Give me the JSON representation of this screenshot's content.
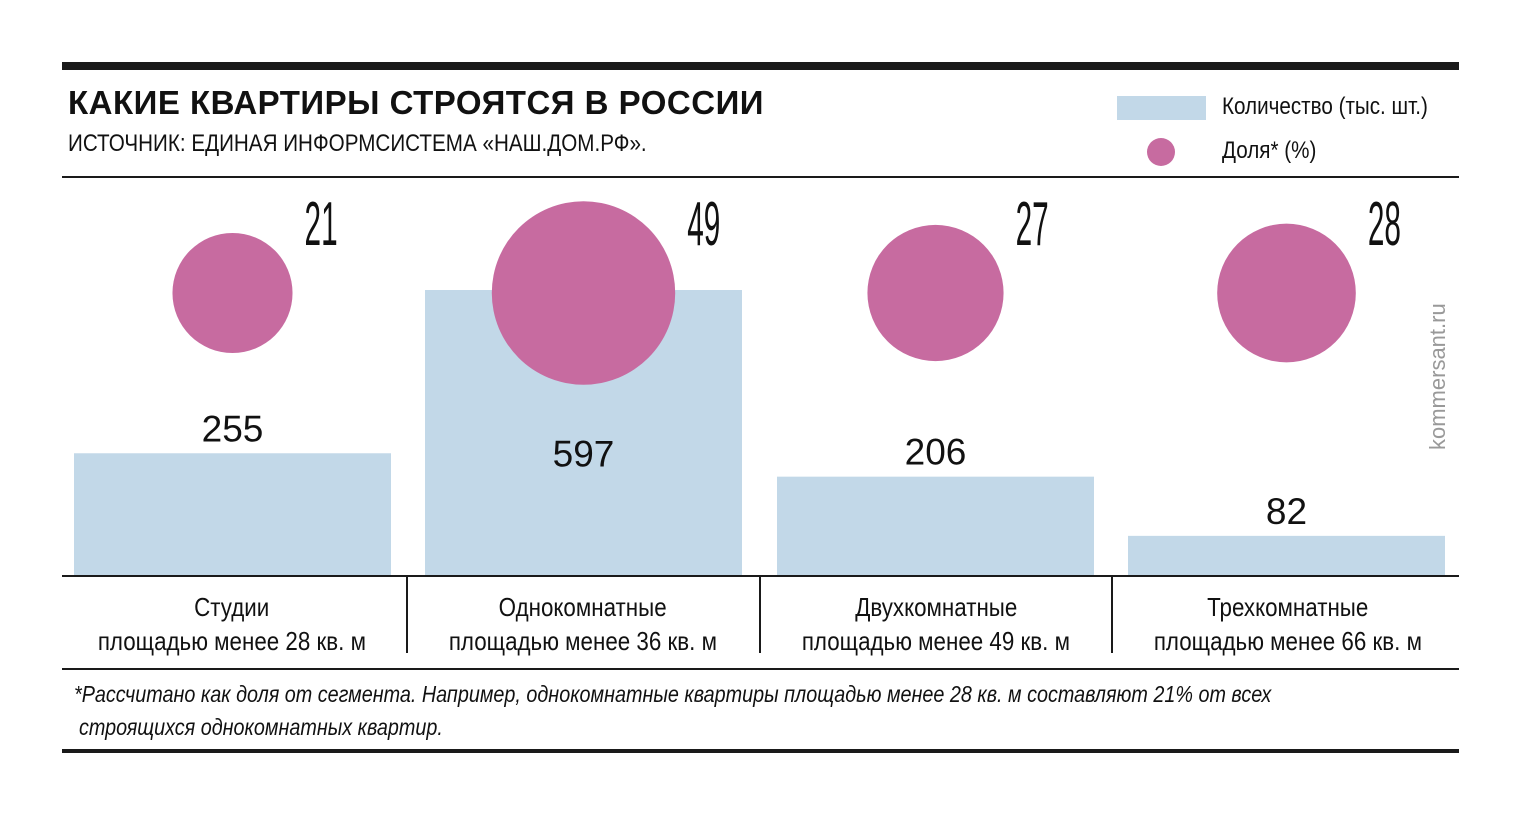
{
  "header": {
    "title": "КАКИЕ КВАРТИРЫ СТРОЯТСЯ В РОССИИ",
    "source": "ИСТОЧНИК: ЕДИНАЯ ИНФОРМСИСТЕМА «НАШ.ДОМ.РФ»."
  },
  "watermark": "kommersant.ru",
  "footnote": [
    "*Рассчитано как доля от сегмента. Например, однокомнатные квартиры площадью менее 28 кв. м составляют 21% от всех",
    "строящихся однокомнатных квартир."
  ],
  "chart_data": {
    "type": "bar",
    "categories": [
      {
        "line1": "Студии",
        "line2": "площадью менее 28 кв. м"
      },
      {
        "line1": "Однокомнатные",
        "line2": "площадью менее 36 кв. м"
      },
      {
        "line1": "Двухкомнатные",
        "line2": "площадью менее 49 кв. м"
      },
      {
        "line1": "Трехкомнатные",
        "line2": "площадью менее 66 кв. м"
      }
    ],
    "series": [
      {
        "name": "Количество (тыс. шт.)",
        "kind": "bar",
        "color": "#c2d8e8",
        "values": [
          255,
          597,
          206,
          82
        ]
      },
      {
        "name": "Доля* (%)",
        "kind": "bubble",
        "color": "#c76ba0",
        "values": [
          21,
          49,
          27,
          28
        ]
      }
    ],
    "legend_position": "top-right",
    "grid": false
  }
}
